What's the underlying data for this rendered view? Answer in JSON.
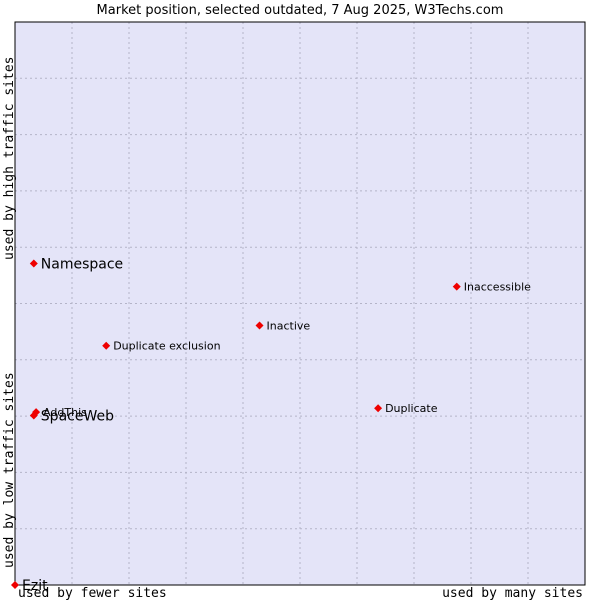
{
  "chart_data": {
    "type": "scatter",
    "title": "Market position, selected outdated, 7 Aug 2025, W3Techs.com",
    "xlabel_left": "used by fewer sites",
    "xlabel_right": "used by many sites",
    "ylabel_bottom": "used by low traffic sites",
    "ylabel_top": "used by high traffic sites",
    "xlim": [
      0,
      100
    ],
    "ylim": [
      0,
      100
    ],
    "grid": true,
    "colors": {
      "plot_bg": "#e4e4f8",
      "grid": "#b4b4c8",
      "border": "#000000",
      "point": "#ee0000"
    },
    "points": [
      {
        "name": "Namespace",
        "x": 3.3,
        "y": 57.1,
        "emphasis": true
      },
      {
        "name": "Inaccessible",
        "x": 77.5,
        "y": 53.0,
        "emphasis": false
      },
      {
        "name": "Inactive",
        "x": 42.9,
        "y": 46.1,
        "emphasis": false
      },
      {
        "name": "Duplicate exclusion",
        "x": 16.0,
        "y": 42.5,
        "emphasis": false
      },
      {
        "name": "AddThis",
        "x": 3.7,
        "y": 30.7,
        "emphasis": false
      },
      {
        "name": "SpaceWeb",
        "x": 3.3,
        "y": 30.1,
        "emphasis": true
      },
      {
        "name": "Duplicate",
        "x": 63.7,
        "y": 31.4,
        "emphasis": false
      },
      {
        "name": "Ezit",
        "x": 0,
        "y": 0,
        "emphasis": true
      }
    ]
  }
}
